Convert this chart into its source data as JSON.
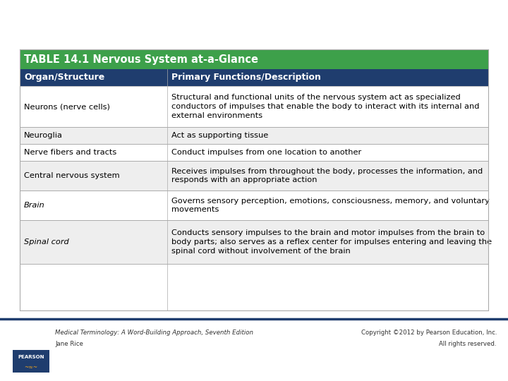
{
  "title": "TABLE 14.1 Nervous System at-a-Glance",
  "title_bg": "#3da04a",
  "title_color": "#ffffff",
  "header_bg": "#1f3d6e",
  "header_color": "#ffffff",
  "col1_header": "Organ/Structure",
  "col2_header": "Primary Functions/Description",
  "row_bg_odd": "#ffffff",
  "row_bg_even": "#eeeeee",
  "border_color": "#aaaaaa",
  "rows": [
    {
      "organ": "Neurons (nerve cells)",
      "description": "Structural and functional units of the nervous system act as specialized\nconductors of impulses that enable the body to interact with its internal and\nexternal environments",
      "italic": false
    },
    {
      "organ": "Neuroglia",
      "description": "Act as supporting tissue",
      "italic": false
    },
    {
      "organ": "Nerve fibers and tracts",
      "description": "Conduct impulses from one location to another",
      "italic": false
    },
    {
      "organ": "Central nervous system",
      "description": "Receives impulses from throughout the body, processes the information, and\nresponds with an appropriate action",
      "italic": false
    },
    {
      "organ": "Brain",
      "description": "Governs sensory perception, emotions, consciousness, memory, and voluntary\nmovements",
      "italic": true
    },
    {
      "organ": "Spinal cord",
      "description": "Conducts sensory impulses to the brain and motor impulses from the brain to\nbody parts; also serves as a reflex center for impulses entering and leaving the\nspinal cord without involvement of the brain",
      "italic": true
    }
  ],
  "footer_left_line1": "Medical Terminology: A Word-Building Approach, Seventh Edition",
  "footer_left_line2": "Jane Rice",
  "footer_right_line1": "Copyright ©2012 by Pearson Education, Inc.",
  "footer_right_line2": "All rights reserved.",
  "bg_color": "#ffffff",
  "fig_width": 7.2,
  "fig_height": 5.4,
  "dpi": 100
}
